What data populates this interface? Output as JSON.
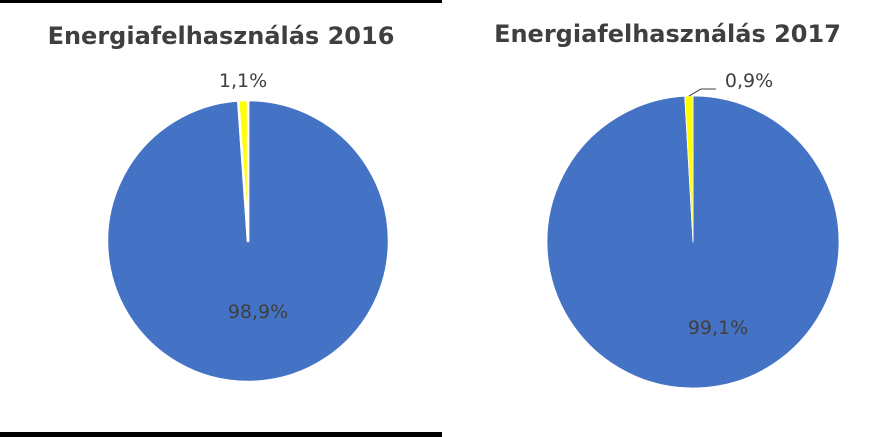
{
  "chart_data": [
    {
      "type": "pie",
      "title": "Energiafelhasználás 2016",
      "slices": [
        {
          "value": 98.9,
          "label": "98,9%",
          "color": "#4472c4"
        },
        {
          "value": 1.1,
          "label": "1,1%",
          "color": "#ffff00"
        }
      ]
    },
    {
      "type": "pie",
      "title": "Energiafelhasználás 2017",
      "slices": [
        {
          "value": 99.1,
          "label": "99,1%",
          "color": "#4472c4"
        },
        {
          "value": 0.9,
          "label": "0,9%",
          "color": "#ffff00"
        }
      ]
    }
  ]
}
